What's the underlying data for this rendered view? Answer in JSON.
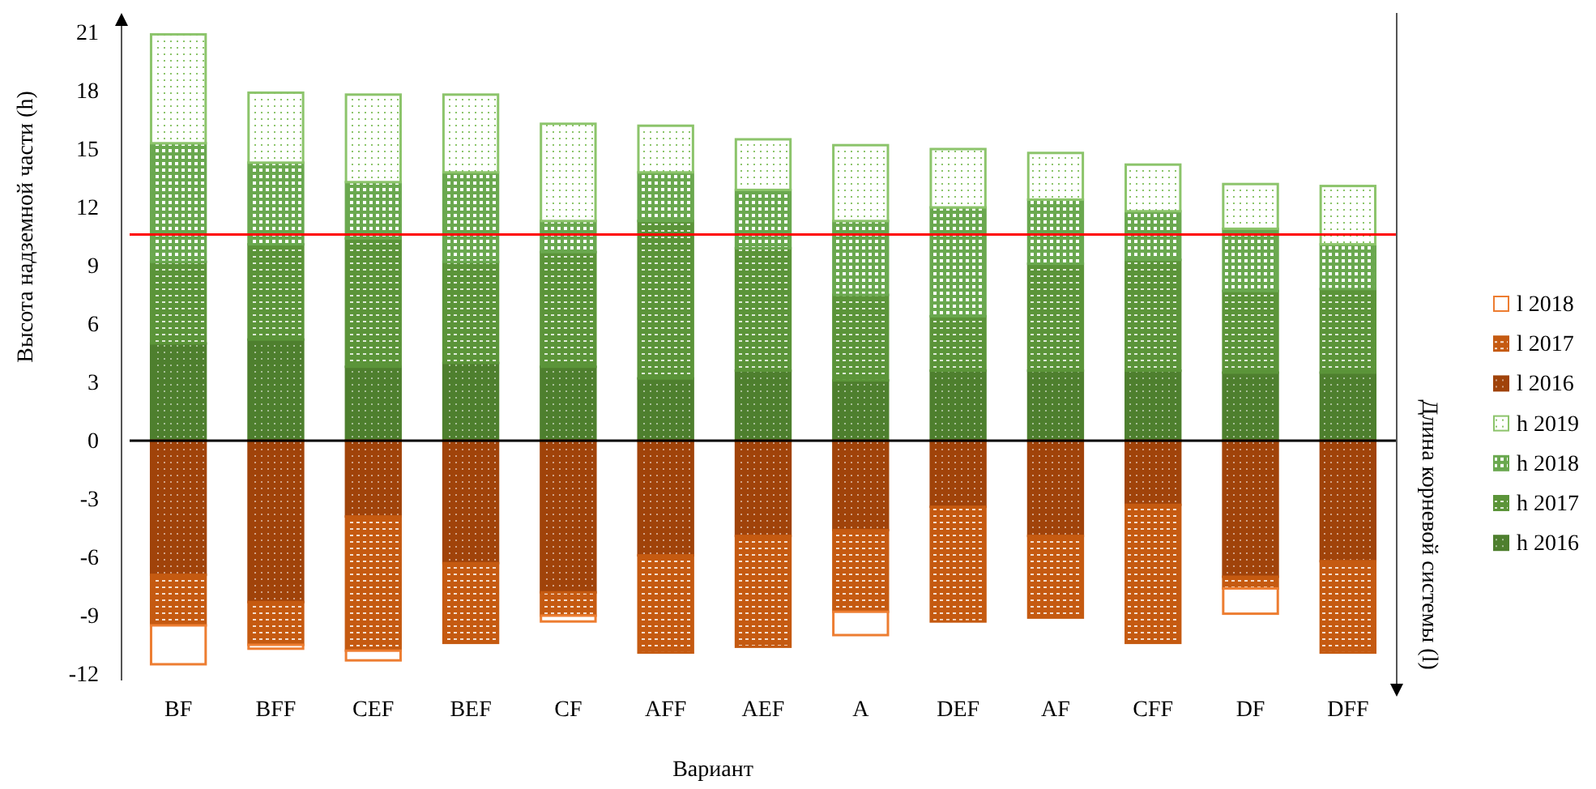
{
  "chart_data": {
    "type": "bar",
    "stacked": true,
    "xlabel": "Вариант",
    "ylabel": "Высота надземной части (h)",
    "y2label": "Длина корневой системы (l)",
    "categories": [
      "BF",
      "BFF",
      "CEF",
      "BEF",
      "CF",
      "AFF",
      "AEF",
      "A",
      "DEF",
      "AF",
      "CFF",
      "DF",
      "DFF"
    ],
    "series": [
      {
        "name": "h 2016",
        "color": "#4e7f2e",
        "values": [
          5.0,
          5.2,
          3.8,
          4.0,
          3.8,
          3.2,
          3.6,
          3.1,
          3.6,
          3.6,
          3.6,
          3.5,
          3.5
        ]
      },
      {
        "name": "h 2017",
        "color": "#5b9439",
        "values": [
          4.2,
          4.9,
          6.6,
          5.2,
          5.9,
          8.1,
          6.3,
          4.4,
          2.8,
          5.5,
          5.7,
          4.2,
          4.3
        ]
      },
      {
        "name": "h 2018",
        "color": "#6aa84f",
        "values": [
          6.1,
          4.2,
          2.9,
          4.6,
          1.6,
          2.5,
          3.0,
          3.8,
          5.6,
          3.3,
          2.5,
          3.2,
          2.3
        ]
      },
      {
        "name": "h 2019",
        "color": "#8cc46b",
        "values": [
          5.6,
          3.6,
          4.5,
          4.0,
          5.0,
          2.4,
          2.6,
          3.9,
          3.0,
          2.4,
          2.4,
          2.3,
          3.0
        ]
      },
      {
        "name": "l 2016",
        "color": "#a0430a",
        "values": [
          -6.9,
          -8.3,
          -3.9,
          -6.3,
          -7.8,
          -5.9,
          -4.9,
          -4.6,
          -3.4,
          -4.9,
          -3.3,
          -7.0,
          -6.2
        ]
      },
      {
        "name": "l 2017",
        "color": "#c55a11",
        "values": [
          -2.6,
          -2.2,
          -6.9,
          -4.1,
          -1.2,
          -5.0,
          -5.7,
          -4.2,
          -5.9,
          -4.2,
          -7.1,
          -0.6,
          -4.7
        ]
      },
      {
        "name": "l 2018",
        "color": "#ed7d31",
        "values": [
          -2.0,
          -0.2,
          -0.5,
          null,
          -0.3,
          null,
          null,
          -1.2,
          null,
          null,
          null,
          -1.3,
          null
        ]
      }
    ],
    "ylim": [
      -12,
      21
    ],
    "yticks": [
      -12,
      -9,
      -6,
      -3,
      0,
      3,
      6,
      9,
      12,
      15,
      18,
      21
    ],
    "ref_lines": [
      {
        "axis": "y",
        "value": 10.6,
        "color": "#ff0000"
      }
    ],
    "legend": "right"
  }
}
